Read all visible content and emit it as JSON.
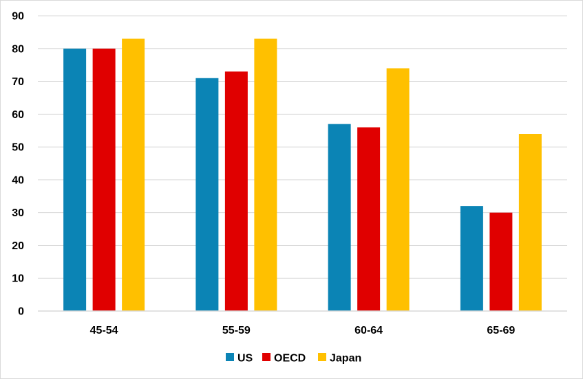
{
  "chart_data": {
    "type": "bar",
    "categories": [
      "45-54",
      "55-59",
      "60-64",
      "65-69"
    ],
    "series": [
      {
        "name": "US",
        "color": "#0b84b5",
        "values": [
          80,
          71,
          57,
          32
        ]
      },
      {
        "name": "OECD",
        "color": "#e00000",
        "values": [
          80,
          73,
          56,
          30
        ]
      },
      {
        "name": "Japan",
        "color": "#ffc000",
        "values": [
          83,
          83,
          74,
          54
        ]
      }
    ],
    "y_ticks": [
      "0",
      "10",
      "20",
      "30",
      "40",
      "50",
      "60",
      "70",
      "80",
      "90"
    ],
    "ylim": [
      0,
      90
    ],
    "grid": true,
    "gridline_color": "#d9d9d9",
    "legend_position": "bottom-center"
  }
}
